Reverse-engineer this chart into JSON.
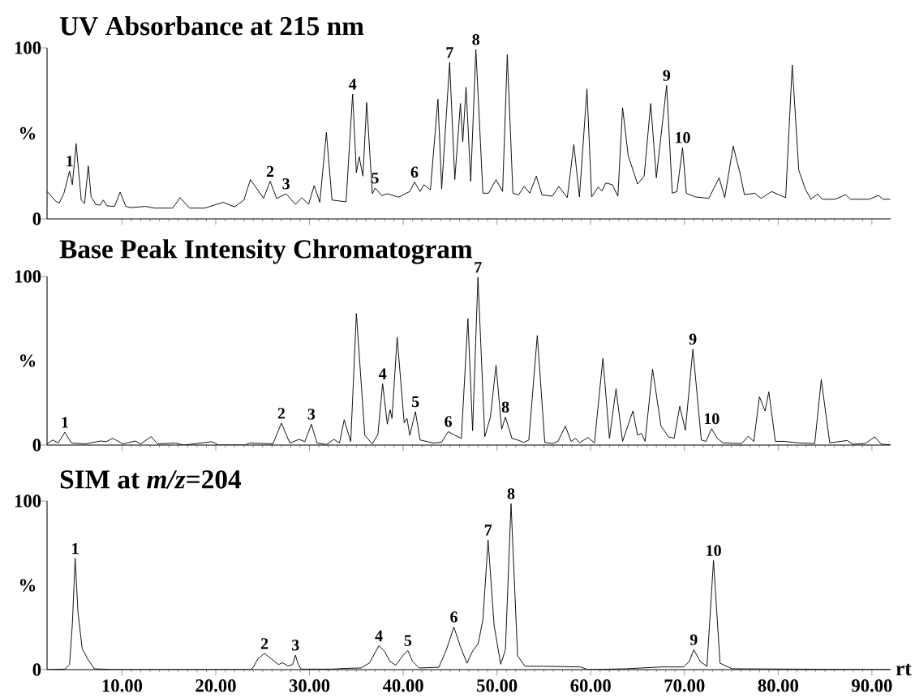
{
  "chart_data": [
    {
      "type": "line",
      "title": "UV Absorbance at 215 nm",
      "ylabel": "%",
      "color": "#000000",
      "xlim": [
        2,
        92
      ],
      "ylim": [
        0,
        100
      ],
      "tick_labels": "y",
      "xticks": [
        {
          "value": 10,
          "label": null
        },
        {
          "value": 20,
          "label": null
        },
        {
          "value": 30,
          "label": null
        },
        {
          "value": 40,
          "label": null
        },
        {
          "value": 50,
          "label": null
        },
        {
          "value": 60,
          "label": null
        },
        {
          "value": 70,
          "label": null
        },
        {
          "value": 80,
          "label": null
        },
        {
          "value": 90,
          "label": null
        }
      ],
      "yticks": [
        0,
        100
      ],
      "x": [
        2.0,
        3.0,
        3.3,
        3.8,
        4.4,
        4.7,
        5.1,
        5.65,
        6.0,
        6.4,
        6.7,
        7.2,
        7.66,
        8.0,
        8.4,
        9.2,
        9.8,
        10.4,
        11.0,
        12.5,
        13.5,
        15.4,
        16.2,
        17.2,
        18.8,
        20.8,
        22.0,
        23.0,
        23.7,
        25.1,
        25.8,
        26.5,
        27.5,
        28.5,
        29.2,
        29.9,
        30.5,
        31.1,
        31.8,
        32.4,
        33.9,
        34.6,
        35.0,
        35.3,
        35.7,
        36.1,
        36.7,
        37.0,
        37.7,
        38.3,
        39.5,
        40.7,
        41.2,
        41.8,
        42.2,
        42.9,
        43.7,
        44.1,
        44.95,
        45.5,
        46.1,
        46.35,
        46.7,
        47.2,
        47.75,
        48.5,
        49.1,
        49.9,
        50.6,
        51.1,
        51.7,
        52.3,
        52.9,
        53.5,
        54.2,
        54.8,
        55.9,
        56.6,
        57.5,
        58.2,
        58.8,
        59.6,
        60.1,
        60.8,
        61.2,
        61.6,
        62.3,
        62.9,
        63.4,
        64.0,
        65.0,
        65.7,
        66.4,
        67.0,
        68.1,
        68.7,
        69.2,
        69.8,
        70.2,
        71.2,
        72.6,
        73.7,
        74.3,
        75.2,
        75.6,
        75.9,
        76.4,
        77.5,
        78.2,
        79.3,
        80.8,
        81.5,
        82.2,
        82.9,
        83.5,
        84.2,
        84.7,
        86.1,
        87.2,
        87.7,
        89.7,
        90.7,
        91.2,
        91.95
      ],
      "values": [
        16,
        10,
        9.3,
        15,
        28,
        20,
        44,
        11,
        9,
        31,
        13,
        8.5,
        8,
        11,
        7.6,
        7.3,
        15.6,
        7.3,
        6.6,
        7.3,
        6.3,
        6.3,
        12.4,
        6.3,
        6.3,
        9.7,
        7,
        11,
        23,
        12,
        22,
        11.9,
        14.7,
        8.5,
        12.4,
        8.5,
        19.5,
        9.7,
        50.5,
        11,
        10,
        73,
        27,
        36.4,
        25,
        68,
        14.7,
        18,
        13.6,
        14.7,
        12.7,
        16,
        21.5,
        16,
        20,
        17,
        70,
        17.5,
        91.5,
        23,
        67.5,
        45,
        77,
        22,
        99,
        15,
        15,
        23,
        16,
        96,
        15,
        14,
        19,
        15,
        25,
        14,
        13.3,
        19,
        12.4,
        43.5,
        12.8,
        76,
        12.8,
        18.6,
        16.3,
        21,
        20,
        13.3,
        65,
        37,
        20.4,
        25,
        67.5,
        24,
        78,
        15,
        16,
        41.7,
        15,
        12.8,
        12,
        24,
        12.4,
        42.6,
        33.7,
        27.5,
        14.2,
        15,
        12,
        16,
        12.4,
        90,
        28.4,
        17.4,
        11.5,
        14.6,
        11.5,
        11.5,
        14.2,
        11.5,
        11.5,
        13.7,
        11.5,
        11.5
      ],
      "annotations": [
        {
          "text": "1",
          "x": 4.4,
          "y": 28
        },
        {
          "text": "2",
          "x": 25.8,
          "y": 22
        },
        {
          "text": "3",
          "x": 27.5,
          "y": 14.7
        },
        {
          "text": "4",
          "x": 34.6,
          "y": 73
        },
        {
          "text": "5",
          "x": 37.0,
          "y": 18
        },
        {
          "text": "6",
          "x": 41.2,
          "y": 21.5
        },
        {
          "text": "7",
          "x": 44.95,
          "y": 91.5
        },
        {
          "text": "8",
          "x": 47.75,
          "y": 99
        },
        {
          "text": "9",
          "x": 68.1,
          "y": 78
        },
        {
          "text": "10",
          "x": 69.8,
          "y": 41.7
        }
      ]
    },
    {
      "type": "line",
      "title": "Base Peak Intensity Chromatogram",
      "ylabel": "%",
      "color": "#000000",
      "xlim": [
        2,
        92
      ],
      "ylim": [
        0,
        100
      ],
      "tick_labels": "y",
      "xticks": [
        {
          "value": 10,
          "label": null
        },
        {
          "value": 20,
          "label": null
        },
        {
          "value": 30,
          "label": null
        },
        {
          "value": 40,
          "label": null
        },
        {
          "value": 50,
          "label": null
        },
        {
          "value": 60,
          "label": null
        },
        {
          "value": 70,
          "label": null
        },
        {
          "value": 80,
          "label": null
        },
        {
          "value": 90,
          "label": null
        }
      ],
      "yticks": [
        0,
        100
      ],
      "x": [
        2.0,
        2.6,
        3.2,
        3.9,
        4.6,
        6.1,
        7.7,
        8.3,
        9.0,
        10.1,
        11.4,
        12.0,
        13.1,
        13.8,
        15.7,
        16.6,
        19.6,
        20.3,
        23.1,
        23.6,
        26.1,
        27.0,
        27.9,
        28.9,
        29.5,
        30.2,
        30.8,
        31.8,
        32.6,
        33.2,
        33.7,
        34.4,
        35.0,
        35.9,
        36.7,
        37.3,
        37.8,
        38.3,
        38.6,
        38.8,
        39.35,
        40.1,
        40.4,
        40.7,
        41.3,
        41.8,
        42.3,
        43.2,
        44.1,
        44.8,
        45.5,
        46.2,
        46.9,
        47.4,
        47.97,
        48.7,
        49.3,
        49.9,
        50.5,
        50.9,
        51.6,
        52.2,
        52.85,
        53.4,
        54.3,
        55.1,
        55.9,
        56.5,
        57.3,
        57.9,
        58.4,
        58.8,
        59.7,
        60.4,
        61.3,
        62.0,
        62.7,
        63.4,
        64.0,
        64.5,
        65.0,
        65.4,
        65.8,
        66.6,
        67.5,
        68.3,
        68.9,
        69.5,
        70.1,
        70.9,
        71.8,
        72.3,
        72.9,
        73.5,
        74.1,
        76.1,
        76.8,
        77.4,
        78.0,
        78.6,
        79.0,
        79.7,
        80.6,
        82.2,
        83.9,
        84.6,
        85.5,
        87.35,
        88.0,
        89.3,
        90.3,
        91.0,
        91.95
      ],
      "values": [
        0.7,
        3,
        1.2,
        7.6,
        1.2,
        0.7,
        2.4,
        2,
        4,
        0.7,
        2.4,
        0.7,
        5,
        0.7,
        1.2,
        0,
        2,
        0,
        0,
        1.2,
        0.7,
        13,
        1.2,
        3.4,
        2,
        12.4,
        1.2,
        0.3,
        3.4,
        1.2,
        15,
        2,
        78,
        5.8,
        0.7,
        6.4,
        36.4,
        12.4,
        21,
        15.8,
        64,
        13.2,
        15.8,
        5.8,
        19.8,
        3,
        2.4,
        1.2,
        1.7,
        8,
        5.8,
        4,
        75,
        8.5,
        99.6,
        4.9,
        16.6,
        47.3,
        9.4,
        16.6,
        4,
        3,
        1.6,
        3,
        65,
        1.6,
        0.9,
        2.2,
        11.2,
        2.2,
        4,
        1.3,
        4.5,
        1.3,
        51.4,
        4,
        33.4,
        2.2,
        12,
        20.2,
        5.8,
        7,
        2.2,
        45,
        11.2,
        4.9,
        4,
        23,
        8.8,
        56.9,
        3,
        2.2,
        9.7,
        4,
        1.3,
        0.9,
        5.2,
        2.2,
        28.7,
        20.2,
        31.6,
        2.2,
        2.2,
        1.3,
        0.9,
        38.8,
        1.3,
        2.7,
        0.5,
        0.9,
        4.9,
        0.5,
        0.2
      ],
      "annotations": [
        {
          "text": "1",
          "x": 3.9,
          "y": 7.6
        },
        {
          "text": "2",
          "x": 27.0,
          "y": 13
        },
        {
          "text": "3",
          "x": 30.2,
          "y": 12.4
        },
        {
          "text": "4",
          "x": 37.8,
          "y": 36.4
        },
        {
          "text": "5",
          "x": 41.3,
          "y": 19.8
        },
        {
          "text": "6",
          "x": 44.8,
          "y": 8
        },
        {
          "text": "7",
          "x": 47.97,
          "y": 99.6
        },
        {
          "text": "8",
          "x": 50.9,
          "y": 16.6
        },
        {
          "text": "9",
          "x": 70.9,
          "y": 56.9
        },
        {
          "text": "10",
          "x": 72.9,
          "y": 9.7
        }
      ]
    },
    {
      "type": "line",
      "title": "SIM at *m/z*=204",
      "xlabel": "rt",
      "ylabel": "%",
      "color": "#000000",
      "xlim": [
        2,
        92
      ],
      "ylim": [
        0,
        100
      ],
      "xticks": [
        {
          "value": 10,
          "label": "10.00"
        },
        {
          "value": 20,
          "label": "20.00"
        },
        {
          "value": 30,
          "label": "30.00"
        },
        {
          "value": 40,
          "label": "40.00"
        },
        {
          "value": 50,
          "label": "50.00"
        },
        {
          "value": 60,
          "label": "60.00"
        },
        {
          "value": 70,
          "label": "70.00"
        },
        {
          "value": 80,
          "label": "80.00"
        },
        {
          "value": 90,
          "label": "90.00"
        }
      ],
      "yticks": [
        0,
        100
      ],
      "x": [
        2.0,
        3.9,
        4.4,
        4.7,
        5.0,
        5.3,
        5.75,
        6.4,
        7.05,
        9.2,
        23.7,
        24.0,
        24.5,
        25.2,
        25.9,
        26.7,
        27.1,
        27.7,
        28.2,
        28.5,
        28.8,
        29.1,
        32.4,
        33.6,
        35.5,
        36.4,
        37.4,
        38.0,
        38.6,
        39.2,
        40.0,
        40.5,
        41.0,
        41.7,
        43.8,
        44.6,
        45.4,
        46.1,
        46.8,
        47.4,
        48.0,
        48.5,
        49.05,
        49.7,
        50.4,
        50.9,
        51.5,
        52.2,
        53.0,
        55.0,
        58.9,
        59.7,
        63.7,
        67.6,
        69.9,
        70.5,
        71.0,
        71.7,
        72.4,
        73.1,
        73.8,
        75.1,
        91.95
      ],
      "values": [
        0,
        0.3,
        3,
        27,
        66,
        34,
        12.5,
        5.7,
        0.5,
        0,
        0,
        1.4,
        6.5,
        9.6,
        6.5,
        3,
        4.1,
        2.2,
        3,
        8.6,
        3,
        0.3,
        0.3,
        0.7,
        1,
        4,
        14.2,
        10.8,
        4.8,
        2.6,
        8.6,
        11.3,
        4.8,
        1,
        1.4,
        11.7,
        25.3,
        13.6,
        3.8,
        11,
        15.4,
        29.7,
        76.9,
        26,
        3.2,
        11.8,
        98.4,
        8.2,
        2,
        2,
        1.6,
        0,
        0.5,
        1.6,
        1.6,
        4.7,
        11.8,
        4.7,
        2,
        64.7,
        3.8,
        0.5,
        0
      ],
      "annotations": [
        {
          "text": "1",
          "x": 5.0,
          "y": 66
        },
        {
          "text": "2",
          "x": 25.2,
          "y": 9.6
        },
        {
          "text": "3",
          "x": 28.5,
          "y": 8.6
        },
        {
          "text": "4",
          "x": 37.4,
          "y": 14.2
        },
        {
          "text": "5",
          "x": 40.5,
          "y": 11.3
        },
        {
          "text": "6",
          "x": 45.4,
          "y": 25.3
        },
        {
          "text": "7",
          "x": 49.05,
          "y": 76.9
        },
        {
          "text": "8",
          "x": 51.5,
          "y": 98.4
        },
        {
          "text": "9",
          "x": 71.0,
          "y": 11.8
        },
        {
          "text": "10",
          "x": 73.1,
          "y": 64.7
        }
      ]
    }
  ]
}
